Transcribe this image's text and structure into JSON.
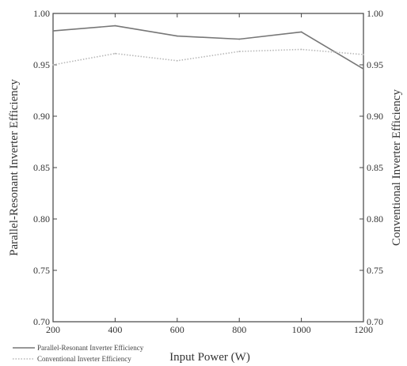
{
  "chart_data": {
    "type": "line",
    "xlabel": "Input Power (W)",
    "ylabel_left": "Parallel-Resonant Inverter Efficiency",
    "ylabel_right": "Conventional Inverter Efficiency",
    "xlim": [
      200,
      1200
    ],
    "ylim": [
      0.7,
      1.0
    ],
    "x_ticks": [
      "200",
      "400",
      "600",
      "800",
      "1000",
      "1200"
    ],
    "y_ticks": [
      "0.70",
      "0.75",
      "0.80",
      "0.85",
      "0.90",
      "0.95",
      "1.00"
    ],
    "grid": false,
    "legend_position": "bottom-left",
    "series": [
      {
        "name": "Parallel-Resonant Inverter Efficiency",
        "axis": "left",
        "color": "#777777",
        "style": "solid",
        "x": [
          200,
          400,
          600,
          800,
          1000,
          1200
        ],
        "y": [
          0.983,
          0.988,
          0.978,
          0.975,
          0.982,
          0.946
        ]
      },
      {
        "name": "Conventional Inverter Efficiency",
        "axis": "right",
        "color": "#b8b8b8",
        "style": "dotted",
        "x": [
          200,
          400,
          600,
          800,
          1000,
          1200
        ],
        "y": [
          0.95,
          0.961,
          0.954,
          0.963,
          0.965,
          0.96
        ]
      }
    ]
  }
}
